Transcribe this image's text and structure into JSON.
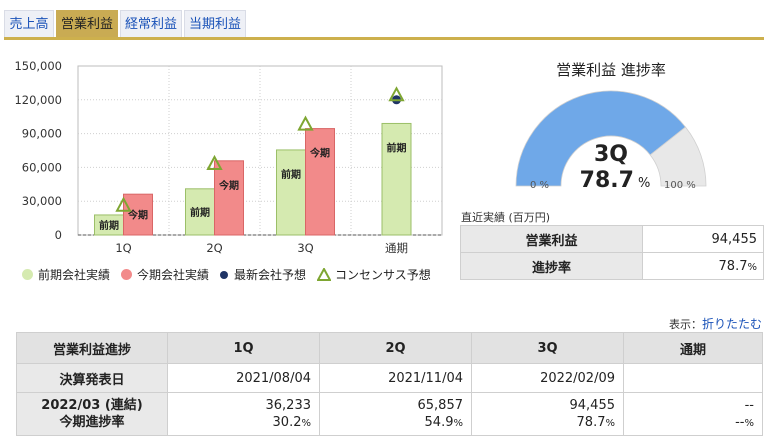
{
  "tabs": [
    {
      "label": "売上高",
      "active": false
    },
    {
      "label": "営業利益",
      "active": true
    },
    {
      "label": "経常利益",
      "active": false
    },
    {
      "label": "当期利益",
      "active": false
    }
  ],
  "chart_data": {
    "type": "bar",
    "categories": [
      "1Q",
      "2Q",
      "3Q",
      "通期"
    ],
    "series": [
      {
        "name": "前期会社実績",
        "values": [
          17800,
          41000,
          75500,
          99000
        ],
        "label": "前期"
      },
      {
        "name": "今期会社実績",
        "values": [
          36233,
          65857,
          94455,
          null
        ],
        "label": "今期"
      },
      {
        "name": "最新会社予想",
        "values": [
          null,
          null,
          null,
          120000
        ]
      },
      {
        "name": "コンセンサス予想",
        "values": [
          26000,
          63000,
          98000,
          124000
        ]
      }
    ],
    "yticks": [
      "0",
      "30,000",
      "60,000",
      "90,000",
      "120,000",
      "150,000"
    ],
    "ylim": [
      0,
      150000
    ],
    "colors": {
      "prev": "#d5eab0",
      "curr": "#f28a8a",
      "forecast": "#1f3466",
      "consensus": "#7ea632"
    }
  },
  "gauge": {
    "title": "営業利益 進捗率",
    "quarter": "3Q",
    "value": "78.7",
    "value_fraction": 0.787,
    "unit": "%",
    "min_label": "0 %",
    "max_label": "100 %",
    "colors": {
      "fill": "#6fa8e8",
      "rest": "#e8e8e8"
    }
  },
  "recent": {
    "caption": "直近実績 (百万円)",
    "rows": [
      {
        "label": "営業利益",
        "value": "94,455",
        "unit": ""
      },
      {
        "label": "進捗率",
        "value": "78.7",
        "unit": "%"
      }
    ]
  },
  "display": {
    "prefix": "表示：",
    "link": "折りたたむ"
  },
  "progress": {
    "header": [
      "営業利益進捗",
      "1Q",
      "2Q",
      "3Q",
      "通期"
    ],
    "row1": {
      "label": "決算発表日",
      "values": [
        "2021/08/04",
        "2021/11/04",
        "2022/02/09",
        ""
      ]
    },
    "row2": {
      "label1": "2022/03 (連結)",
      "label2": "今期進捗率",
      "values": [
        "36,233",
        "65,857",
        "94,455",
        "--"
      ],
      "rates": [
        "30.2",
        "54.9",
        "78.7",
        "--"
      ],
      "unit": "%"
    }
  }
}
